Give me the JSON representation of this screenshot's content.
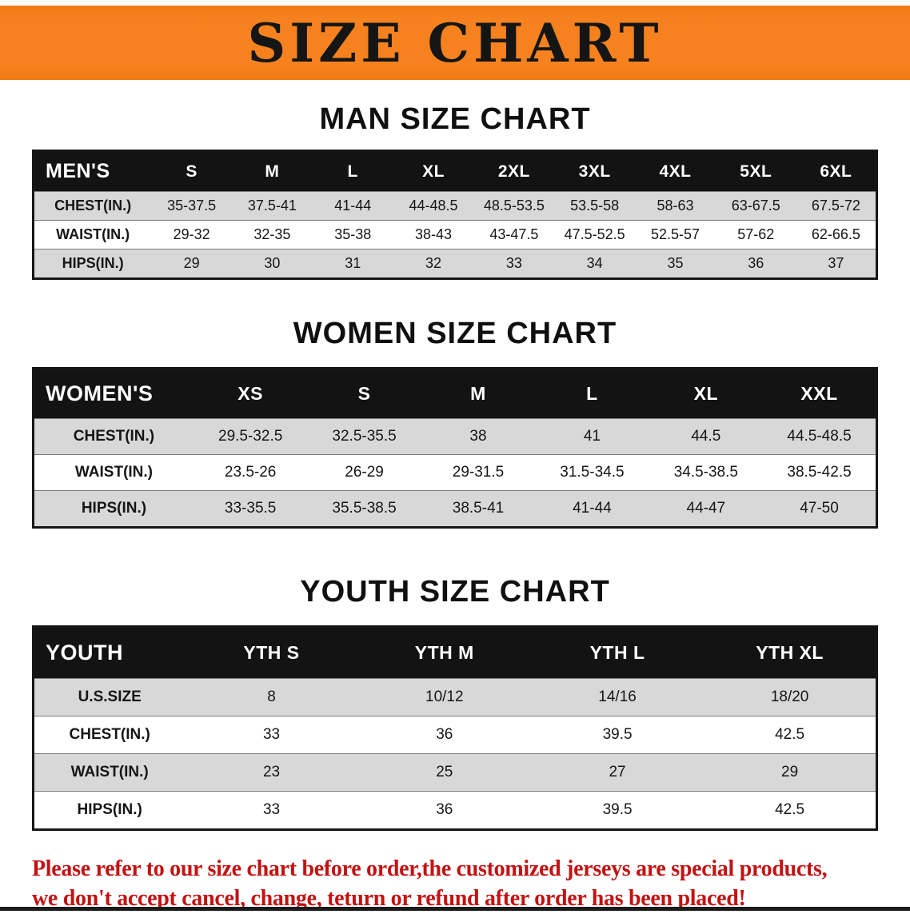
{
  "banner": {
    "title": "SIZE CHART"
  },
  "colors": {
    "banner_bg": "#f5821f",
    "header_bg": "#131313",
    "row_gray": "#d8d8d8",
    "footer_red": "#c41111"
  },
  "sections": [
    {
      "heading": "MAN SIZE CHART",
      "table": {
        "header": [
          "MEN'S",
          "S",
          "M",
          "L",
          "XL",
          "2XL",
          "3XL",
          "4XL",
          "5XL",
          "6XL"
        ],
        "rows": [
          [
            "CHEST(IN.)",
            "35-37.5",
            "37.5-41",
            "41-44",
            "44-48.5",
            "48.5-53.5",
            "53.5-58",
            "58-63",
            "63-67.5",
            "67.5-72"
          ],
          [
            "WAIST(IN.)",
            "29-32",
            "32-35",
            "35-38",
            "38-43",
            "43-47.5",
            "47.5-52.5",
            "52.5-57",
            "57-62",
            "62-66.5"
          ],
          [
            "HIPS(IN.)",
            "29",
            "30",
            "31",
            "32",
            "33",
            "34",
            "35",
            "36",
            "37"
          ]
        ]
      }
    },
    {
      "heading": "WOMEN SIZE CHART",
      "table": {
        "header": [
          "WOMEN'S",
          "XS",
          "S",
          "M",
          "L",
          "XL",
          "XXL"
        ],
        "rows": [
          [
            "CHEST(IN.)",
            "29.5-32.5",
            "32.5-35.5",
            "38",
            "41",
            "44.5",
            "44.5-48.5"
          ],
          [
            "WAIST(IN.)",
            "23.5-26",
            "26-29",
            "29-31.5",
            "31.5-34.5",
            "34.5-38.5",
            "38.5-42.5"
          ],
          [
            "HIPS(IN.)",
            "33-35.5",
            "35.5-38.5",
            "38.5-41",
            "41-44",
            "44-47",
            "47-50"
          ]
        ]
      }
    },
    {
      "heading": "YOUTH SIZE CHART",
      "table": {
        "header": [
          "YOUTH",
          "YTH S",
          "YTH M",
          "YTH L",
          "YTH XL"
        ],
        "rows": [
          [
            "U.S.SIZE",
            "8",
            "10/12",
            "14/16",
            "18/20"
          ],
          [
            "CHEST(IN.)",
            "33",
            "36",
            "39.5",
            "42.5"
          ],
          [
            "WAIST(IN.)",
            "23",
            "25",
            "27",
            "29"
          ],
          [
            "HIPS(IN.)",
            "33",
            "36",
            "39.5",
            "42.5"
          ]
        ]
      }
    }
  ],
  "footer": {
    "line1": "Please refer to our size chart before order,the customized jerseys are special products,",
    "line2": "we don't accept cancel, change, teturn or refund after order has been placed!"
  }
}
